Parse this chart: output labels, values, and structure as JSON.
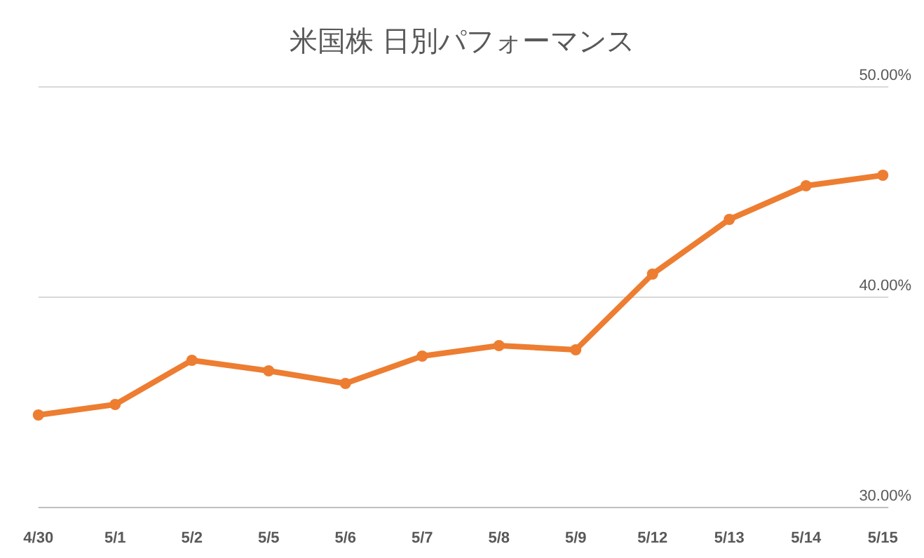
{
  "chart_data": {
    "type": "line",
    "title": "米国株 日別パフォーマンス",
    "categories": [
      "4/30",
      "5/1",
      "5/2",
      "5/5",
      "5/6",
      "5/7",
      "5/8",
      "5/9",
      "5/12",
      "5/13",
      "5/14",
      "5/15"
    ],
    "series": [
      {
        "color": "#ed7d31",
        "values": [
          34.4,
          34.9,
          37.0,
          36.5,
          35.9,
          37.2,
          37.7,
          37.5,
          41.1,
          43.7,
          45.3,
          45.8
        ]
      }
    ],
    "ylim": [
      30,
      50
    ],
    "yticks": [
      {
        "value": 30,
        "label": "30.00%"
      },
      {
        "value": 40,
        "label": "40.00%"
      },
      {
        "value": 50,
        "label": "50.00%"
      }
    ],
    "grid": "y",
    "marker": "circle",
    "line_style": "solid"
  }
}
